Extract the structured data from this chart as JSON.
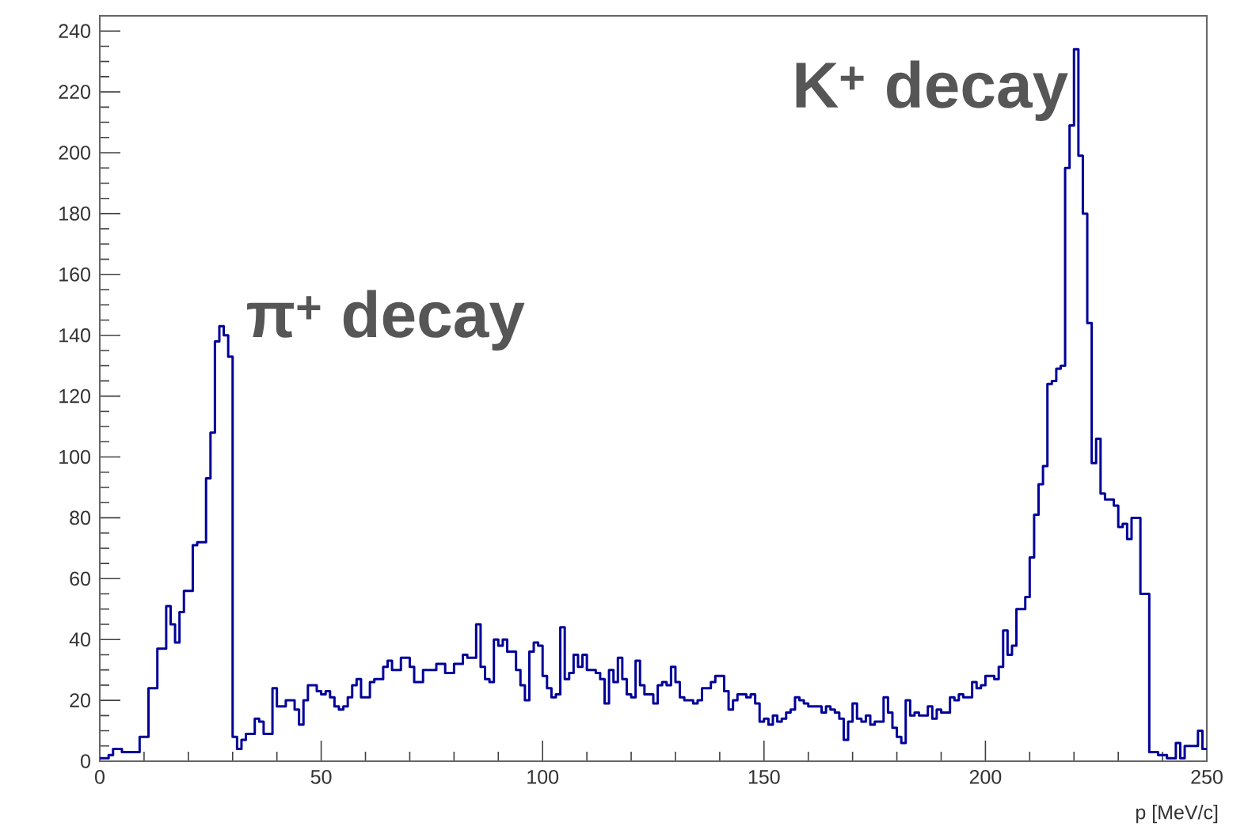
{
  "chart_data": {
    "type": "histogram",
    "xlabel": "p [MeV/c]",
    "color": "#000099",
    "bins": [
      0,
      1,
      2,
      3,
      4,
      5,
      6,
      7,
      8,
      9,
      10,
      11,
      12,
      13,
      14,
      15,
      16,
      17,
      18,
      19,
      20,
      21,
      22,
      23,
      24,
      25,
      26,
      27,
      28,
      29,
      30,
      31,
      32,
      33,
      34,
      35,
      36,
      37,
      38,
      39,
      40,
      41,
      42,
      43,
      44,
      45,
      46,
      47,
      48,
      49,
      50,
      51,
      52,
      53,
      54,
      55,
      56,
      57,
      58,
      59,
      60,
      61,
      62,
      63,
      64,
      65,
      66,
      67,
      68,
      69,
      70,
      71,
      72,
      73,
      74,
      75,
      76,
      77,
      78,
      79,
      80,
      81,
      82,
      83,
      84,
      85,
      86,
      87,
      88,
      89,
      90,
      91,
      92,
      93,
      94,
      95,
      96,
      97,
      98,
      99,
      100,
      101,
      102,
      103,
      104,
      105,
      106,
      107,
      108,
      109,
      110,
      111,
      112,
      113,
      114,
      115,
      116,
      117,
      118,
      119,
      120,
      121,
      122,
      123,
      124,
      125,
      126,
      127,
      128,
      129,
      130,
      131,
      132,
      133,
      134,
      135,
      136,
      137,
      138,
      139,
      140,
      141,
      142,
      143,
      144,
      145,
      146,
      147,
      148,
      149,
      150,
      151,
      152,
      153,
      154,
      155,
      156,
      157,
      158,
      159,
      160,
      161,
      162,
      163,
      164,
      165,
      166,
      167,
      168,
      169,
      170,
      171,
      172,
      173,
      174,
      175,
      176,
      177,
      178,
      179,
      180,
      181,
      182,
      183,
      184,
      185,
      186,
      187,
      188,
      189,
      190,
      191,
      192,
      193,
      194,
      195,
      196,
      197,
      198,
      199,
      200,
      201,
      202,
      203,
      204,
      205,
      206,
      207,
      208,
      209,
      210,
      211,
      212,
      213,
      214,
      215,
      216,
      217,
      218,
      219,
      220,
      221,
      222,
      223,
      224,
      225,
      226,
      227,
      228,
      229,
      230,
      231,
      232,
      233,
      234,
      235,
      236,
      237,
      238,
      239,
      240,
      241,
      242,
      243,
      244,
      245,
      246,
      247,
      248,
      249,
      250
    ],
    "values": [
      1,
      1,
      2,
      4,
      4,
      3,
      3,
      3,
      3,
      8,
      8,
      24,
      24,
      37,
      37,
      51,
      45,
      39,
      49,
      56,
      56,
      71,
      72,
      72,
      93,
      108,
      138,
      143,
      140,
      133,
      8,
      4,
      7,
      9,
      9,
      14,
      13,
      9,
      9,
      24,
      18,
      18,
      20,
      20,
      17,
      12,
      20,
      25,
      25,
      23,
      22,
      23,
      21,
      18,
      17,
      18,
      21,
      25,
      27,
      21,
      21,
      26,
      27,
      27,
      31,
      33,
      30,
      30,
      34,
      34,
      31,
      26,
      26,
      30,
      30,
      30,
      32,
      32,
      29,
      29,
      32,
      32,
      35,
      34,
      34,
      45,
      31,
      27,
      26,
      40,
      38,
      40,
      36,
      36,
      30,
      25,
      20,
      36,
      39,
      38,
      28,
      24,
      21,
      22,
      44,
      27,
      29,
      35,
      31,
      35,
      30,
      30,
      29,
      27,
      19,
      30,
      26,
      34,
      27,
      22,
      21,
      33,
      25,
      22,
      22,
      19,
      25,
      26,
      25,
      31,
      26,
      21,
      20,
      20,
      19,
      20,
      24,
      24,
      26,
      28,
      28,
      23,
      17,
      20,
      22,
      22,
      21,
      22,
      19,
      13,
      14,
      12,
      15,
      13,
      14,
      16,
      17,
      21,
      20,
      19,
      18,
      18,
      18,
      16,
      18,
      17,
      16,
      14,
      7,
      13,
      19,
      14,
      13,
      15,
      12,
      13,
      13,
      21,
      16,
      11,
      8,
      6,
      20,
      15,
      16,
      15,
      15,
      18,
      14,
      17,
      16,
      16,
      21,
      20,
      22,
      21,
      21,
      26,
      24,
      25,
      28,
      28,
      27,
      31,
      43,
      35,
      38,
      50,
      50,
      54,
      67,
      81,
      91,
      97,
      124,
      125,
      129,
      130,
      195,
      209,
      234,
      199,
      180,
      144,
      98,
      106,
      88,
      86,
      86,
      84,
      77,
      78,
      73,
      80,
      80,
      55,
      55,
      3,
      3,
      2,
      2,
      1,
      1,
      6,
      1,
      5,
      5,
      5,
      10,
      4
    ],
    "xlim": [
      0,
      250
    ],
    "ylim": [
      0,
      245
    ],
    "xticks": [
      0,
      {
        "value": 10,
        "label": null
      },
      {
        "value": 20,
        "label": null
      },
      {
        "value": 30,
        "label": null
      },
      {
        "value": 40,
        "label": null
      },
      50,
      {
        "value": 60,
        "label": null
      },
      {
        "value": 70,
        "label": null
      },
      {
        "value": 80,
        "label": null
      },
      {
        "value": 90,
        "label": null
      },
      100,
      {
        "value": 110,
        "label": null
      },
      {
        "value": 120,
        "label": null
      },
      {
        "value": 130,
        "label": null
      },
      {
        "value": 140,
        "label": null
      },
      150,
      {
        "value": 160,
        "label": null
      },
      {
        "value": 170,
        "label": null
      },
      {
        "value": 180,
        "label": null
      },
      {
        "value": 190,
        "label": null
      },
      200,
      {
        "value": 210,
        "label": null
      },
      {
        "value": 220,
        "label": null
      },
      {
        "value": 230,
        "label": null
      },
      {
        "value": 240,
        "label": null
      },
      250
    ],
    "yticks": [
      0,
      {
        "value": 5,
        "label": null
      },
      {
        "value": 10,
        "label": null
      },
      {
        "value": 15,
        "label": null
      },
      20,
      {
        "value": 25,
        "label": null
      },
      {
        "value": 30,
        "label": null
      },
      {
        "value": 35,
        "label": null
      },
      40,
      {
        "value": 45,
        "label": null
      },
      {
        "value": 50,
        "label": null
      },
      {
        "value": 55,
        "label": null
      },
      60,
      {
        "value": 65,
        "label": null
      },
      {
        "value": 70,
        "label": null
      },
      {
        "value": 75,
        "label": null
      },
      80,
      {
        "value": 85,
        "label": null
      },
      {
        "value": 90,
        "label": null
      },
      {
        "value": 95,
        "label": null
      },
      100,
      {
        "value": 105,
        "label": null
      },
      {
        "value": 110,
        "label": null
      },
      {
        "value": 115,
        "label": null
      },
      120,
      {
        "value": 125,
        "label": null
      },
      {
        "value": 130,
        "label": null
      },
      {
        "value": 135,
        "label": null
      },
      140,
      {
        "value": 145,
        "label": null
      },
      {
        "value": 150,
        "label": null
      },
      {
        "value": 155,
        "label": null
      },
      160,
      {
        "value": 165,
        "label": null
      },
      {
        "value": 170,
        "label": null
      },
      {
        "value": 175,
        "label": null
      },
      180,
      {
        "value": 185,
        "label": null
      },
      {
        "value": 190,
        "label": null
      },
      {
        "value": 195,
        "label": null
      },
      200,
      {
        "value": 205,
        "label": null
      },
      {
        "value": 210,
        "label": null
      },
      {
        "value": 215,
        "label": null
      },
      220,
      {
        "value": 225,
        "label": null
      },
      {
        "value": 230,
        "label": null
      },
      {
        "value": 235,
        "label": null
      },
      240
    ],
    "annotations": [
      "π$^{+}$ decay",
      "K$^{+}$ decay"
    ]
  }
}
